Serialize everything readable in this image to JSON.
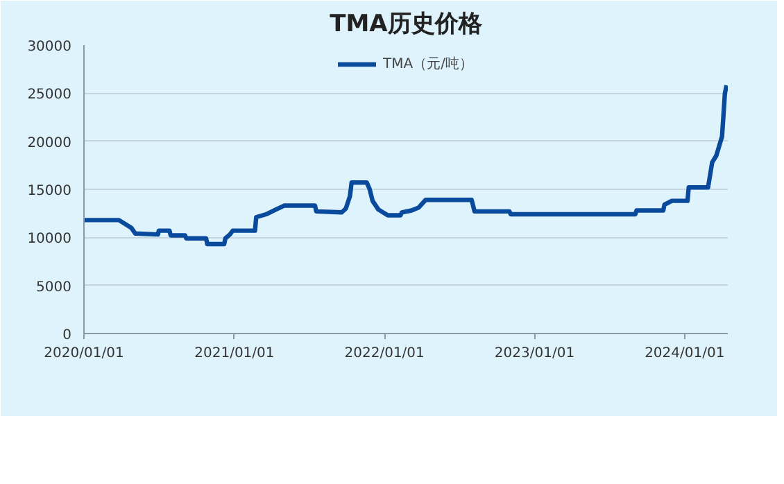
{
  "chart_data": {
    "type": "line",
    "title": "TMA历史价格",
    "legend": "top",
    "grid": "y",
    "line_style": "solid",
    "marker": "none",
    "x": [
      "2020-01-01",
      "2020-03-26",
      "2020-04-25",
      "2020-05-05",
      "2020-06-29",
      "2020-07-01",
      "2020-07-27",
      "2020-07-30",
      "2020-09-03",
      "2020-09-06",
      "2020-10-24",
      "2020-10-27",
      "2020-12-07",
      "2020-12-10",
      "2020-12-21",
      "2020-12-28",
      "2021-02-20",
      "2021-02-23",
      "2021-03-19",
      "2021-04-12",
      "2021-05-02",
      "2021-07-16",
      "2021-07-19",
      "2021-09-19",
      "2021-09-29",
      "2021-10-09",
      "2021-10-13",
      "2021-11-19",
      "2021-11-26",
      "2021-12-03",
      "2021-12-17",
      "2022-01-09",
      "2022-02-09",
      "2022-02-12",
      "2022-03-08",
      "2022-03-25",
      "2022-04-11",
      "2022-08-01",
      "2022-08-08",
      "2022-11-01",
      "2022-11-04",
      "2023-09-03",
      "2023-09-06",
      "2023-11-10",
      "2023-11-13",
      "2023-12-01",
      "2024-01-08",
      "2024-01-11",
      "2024-02-27",
      "2024-03-08",
      "2024-03-18",
      "2024-03-25",
      "2024-04-01",
      "2024-04-08",
      "2024-04-12"
    ],
    "series": [
      {
        "name": "TMA（元/吨）",
        "color": "#0a4a9c",
        "values": [
          11800,
          11800,
          11000,
          10400,
          10300,
          10700,
          10700,
          10200,
          10200,
          9900,
          9900,
          9300,
          9300,
          9900,
          10300,
          10700,
          10700,
          12100,
          12400,
          12900,
          13300,
          13300,
          12700,
          12600,
          13000,
          14300,
          15700,
          15700,
          15000,
          13800,
          12900,
          12300,
          12300,
          12600,
          12800,
          13100,
          13900,
          13900,
          12700,
          12700,
          12400,
          12400,
          12800,
          12800,
          13400,
          13800,
          13800,
          15200,
          15200,
          17800,
          18500,
          19500,
          20500,
          25000,
          25800
        ]
      }
    ],
    "xlim": [
      "2020-01-01",
      "2024-04-15"
    ],
    "xticks": [
      {
        "value": "2020-01-01",
        "label": "2020/01/01"
      },
      {
        "value": "2021-01-01",
        "label": "2021/01/01"
      },
      {
        "value": "2022-01-01",
        "label": "2022/01/01"
      },
      {
        "value": "2023-01-01",
        "label": "2023/01/01"
      },
      {
        "value": "2024-01-01",
        "label": "2024/01/01"
      }
    ],
    "ylim": [
      0,
      30000
    ],
    "yticks": [
      0,
      5000,
      10000,
      15000,
      20000,
      25000,
      30000
    ]
  }
}
